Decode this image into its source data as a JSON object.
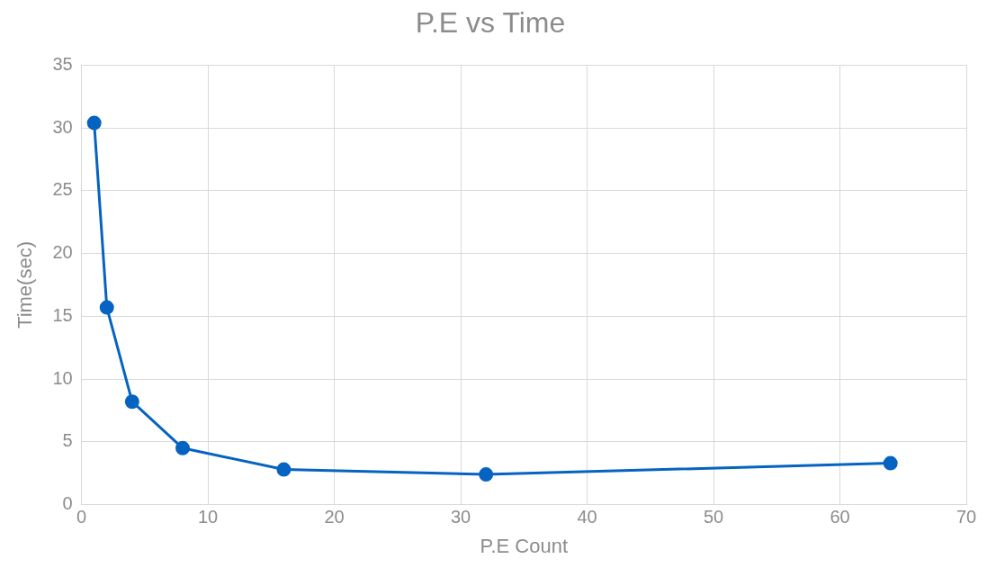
{
  "chart_data": {
    "type": "line",
    "title": "P.E vs Time",
    "xlabel": "P.E Count",
    "ylabel": "Time(sec)",
    "series": [
      {
        "color": "#0563c1",
        "x": [
          1,
          2,
          4,
          8,
          16,
          32,
          64
        ],
        "values": [
          30.4,
          15.7,
          8.2,
          4.5,
          2.8,
          2.4,
          3.3
        ]
      }
    ],
    "xlim": [
      0,
      70
    ],
    "xticks": [
      0,
      10,
      20,
      30,
      40,
      50,
      60,
      70
    ],
    "ylim": [
      0,
      35
    ],
    "yticks": [
      0,
      5,
      10,
      15,
      20,
      25,
      30,
      35
    ],
    "grid": true,
    "legend": false,
    "marker": "circle",
    "line_style": "solid"
  }
}
